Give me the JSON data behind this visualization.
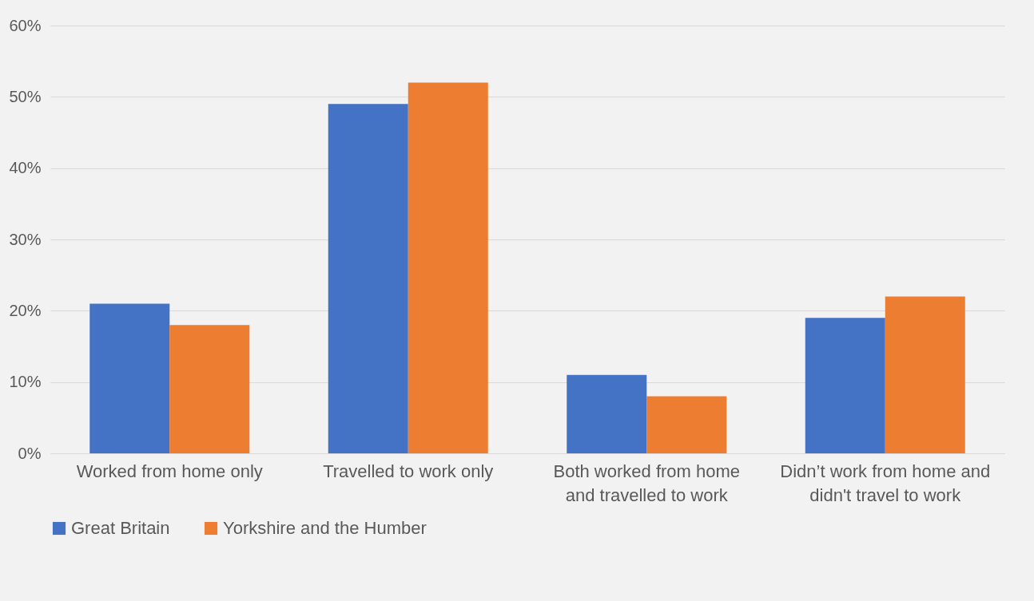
{
  "chart_data": {
    "type": "bar",
    "categories": [
      "Worked from home only",
      "Travelled to work only",
      "Both worked from home and travelled to work",
      "Didn’t work from home and didn't travel to work"
    ],
    "series": [
      {
        "name": "Great Britain",
        "color": "#4472c4",
        "values": [
          21,
          49,
          11,
          19
        ]
      },
      {
        "name": "Yorkshire and the Humber",
        "color": "#ed7d31",
        "values": [
          18,
          52,
          8,
          22
        ]
      }
    ],
    "ylim": [
      0,
      60
    ],
    "yticks": [
      {
        "value": 0,
        "label": "0%"
      },
      {
        "value": 10,
        "label": "10%"
      },
      {
        "value": 20,
        "label": "20%"
      },
      {
        "value": 30,
        "label": "30%"
      },
      {
        "value": 40,
        "label": "40%"
      },
      {
        "value": 50,
        "label": "50%"
      },
      {
        "value": 60,
        "label": "60%"
      }
    ],
    "grid": "y",
    "legend": "bottom"
  }
}
